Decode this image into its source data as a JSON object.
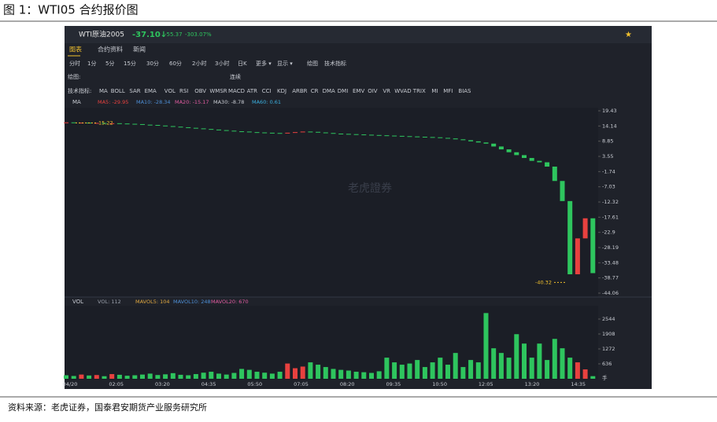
{
  "figure_title": "图 1：WTI05 合约报价图",
  "source": "资料来源：老虎证券，国泰君安期货产业服务研究所",
  "app": {
    "symbol": "WTI原油2005",
    "price": "-37.10↓",
    "change": "-55.37",
    "change_pct": "-303.07%",
    "tabs": [
      "图表",
      "合约资料",
      "新闻"
    ],
    "periods": [
      "分时",
      "1分",
      "5分",
      "15分",
      "30分",
      "60分",
      "2小时",
      "3小时",
      "日K",
      "更多 ▾"
    ],
    "period_right": [
      "显示 ▾",
      "绘图",
      "技术指标"
    ],
    "draw_label": "绘图:",
    "draw_continuous": "连续",
    "indicator_label": "技术指标:",
    "indicators": [
      "MA",
      "BOLL",
      "SAR",
      "EMA",
      "VOL",
      "RSI",
      "OBV",
      "WMSR",
      "MACD",
      "ATR",
      "CCI",
      "KDJ",
      "ARBR",
      "CR",
      "DMA",
      "DMI",
      "EMV",
      "OIV",
      "VR",
      "WVAD",
      "TRIX",
      "MI",
      "MFI",
      "BIAS"
    ],
    "ma_row": {
      "name": "MA",
      "items": [
        "MA5: -29.95",
        "MA10: -28.34",
        "MA20: -15.17",
        "MA30: -8.78",
        "MA60: 0.61"
      ]
    },
    "vol_row": {
      "name": "VOL",
      "items": [
        "VOL: 112",
        "MAVOL5: 104",
        "MAVOL10: 248",
        "MAVOL20: 670"
      ]
    },
    "watermark": "老虎證券"
  },
  "chart_data": [
    {
      "type": "candlestick",
      "values": [
        15.4,
        15.3,
        15.3,
        15.2,
        15.2,
        15.1,
        15.1,
        15.0,
        14.9,
        14.8,
        14.6,
        14.5,
        14.3,
        14.1,
        13.9,
        13.7,
        13.5,
        13.3,
        13.1,
        12.9,
        12.7,
        12.5,
        12.3,
        12.2,
        12.0,
        11.9,
        11.8,
        11.7,
        11.6,
        11.8,
        12.0,
        12.2,
        12.1,
        11.9,
        11.7,
        11.5,
        11.4,
        11.3,
        11.2,
        11.1,
        11.0,
        10.9,
        10.8,
        10.7,
        10.6,
        10.5,
        10.4,
        10.3,
        10.2,
        10.0,
        9.8,
        9.5,
        9.2,
        8.8,
        8.4,
        8.0,
        7.0,
        6.0,
        5.0,
        4.0,
        3.0,
        2.0,
        1.5,
        0.0,
        -5.0,
        -12.0,
        -37.5,
        -25.0,
        -18.0,
        -37.1
      ],
      "up_color": "#e8413f",
      "down_color": "#2ec55e",
      "ylim": [
        -44.06,
        19.43
      ],
      "yticks": [
        19.43,
        14.14,
        8.85,
        3.55,
        -1.74,
        -7.03,
        -12.32,
        -17.61,
        -22.9,
        -28.19,
        -33.48,
        -38.77,
        -44.06
      ],
      "annotations": [
        {
          "value": 15.22,
          "label": "15.22"
        },
        {
          "value": -40.32,
          "label": "-40.32"
        }
      ]
    },
    {
      "type": "bar",
      "values": [
        150,
        120,
        180,
        140,
        160,
        110,
        200,
        170,
        130,
        150,
        180,
        220,
        160,
        190,
        240,
        170,
        150,
        200,
        260,
        300,
        220,
        180,
        250,
        420,
        380,
        300,
        260,
        220,
        300,
        650,
        450,
        520,
        700,
        600,
        500,
        420,
        380,
        350,
        300,
        280,
        250,
        320,
        900,
        700,
        600,
        650,
        800,
        500,
        700,
        900,
        600,
        1100,
        500,
        800,
        700,
        2800,
        1300,
        1100,
        900,
        1900,
        1500,
        900,
        1500,
        800,
        1700,
        1300,
        900,
        700,
        400,
        112
      ],
      "colors": [
        "#2ec55e",
        "#e8413f"
      ],
      "ylim": [
        0,
        3080
      ],
      "yticks": [
        2544,
        1908,
        1272,
        636
      ],
      "yunit": "手",
      "xticks": [
        "04/20",
        "02:05",
        "03:20",
        "04:35",
        "05:50",
        "07:05",
        "08:20",
        "09:35",
        "10:50",
        "12:05",
        "13:20",
        "14:35"
      ]
    }
  ]
}
